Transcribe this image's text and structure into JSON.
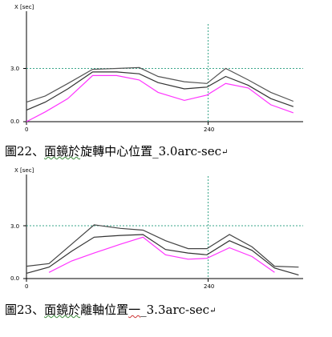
{
  "charts": [
    {
      "ylabel": "X [sec]",
      "ytick": "3.0",
      "ytick0": "0.0",
      "xtick0": "0",
      "xtick": "240",
      "caption": {
        "prefix": "圖22、",
        "underlined": "面鏡於",
        "rest": "旋轉中心位置_3.0arc-sec",
        "mark": "↵"
      }
    },
    {
      "ylabel": "X [sec]",
      "ytick": "3.0",
      "ytick0": "0.0",
      "xtick0": "0",
      "xtick": "240",
      "caption": {
        "prefix": "圖23、",
        "underlined": "面鏡於",
        "rest_a": "離軸位置",
        "underlined_red": "一",
        "rest_b": "_3.3arc-sec",
        "mark": "↵"
      }
    }
  ],
  "chart_data": [
    {
      "type": "line",
      "xlabel": "",
      "ylabel": "X [sec]",
      "xlim": [
        0,
        368
      ],
      "ylim": [
        0,
        4.5
      ],
      "grid": false,
      "reference_lines": {
        "x": 240,
        "y": 3.0
      },
      "series": [
        {
          "x": [
            0,
            25,
            55,
            88,
            120,
            150,
            175,
            210,
            240,
            265,
            295,
            325,
            355
          ],
          "values": [
            1.1,
            1.45,
            2.15,
            2.95,
            3.0,
            3.05,
            2.55,
            2.25,
            2.15,
            3.0,
            2.35,
            1.65,
            1.15
          ],
          "color": "#555555"
        },
        {
          "x": [
            0,
            25,
            55,
            88,
            120,
            150,
            175,
            210,
            240,
            265,
            295,
            325,
            355
          ],
          "values": [
            0.65,
            1.1,
            1.85,
            2.8,
            2.8,
            2.7,
            2.2,
            1.85,
            1.95,
            2.55,
            2.05,
            1.3,
            0.85
          ],
          "color": "#333333"
        },
        {
          "x": [
            0,
            25,
            55,
            88,
            120,
            150,
            175,
            210,
            240,
            265,
            295,
            325,
            355
          ],
          "values": [
            0.0,
            0.55,
            1.3,
            2.6,
            2.6,
            2.35,
            1.65,
            1.2,
            1.5,
            2.15,
            1.9,
            0.95,
            0.5
          ],
          "color": "#ff33ff"
        }
      ]
    },
    {
      "type": "line",
      "xlabel": "",
      "ylabel": "X [sec]",
      "xlim": [
        0,
        368
      ],
      "ylim": [
        0,
        4.5
      ],
      "grid": false,
      "reference_lines": {
        "x": 240,
        "y": 3.0
      },
      "series": [
        {
          "x": [
            0,
            30,
            60,
            90,
            125,
            155,
            185,
            215,
            240,
            270,
            300,
            330,
            362
          ],
          "values": [
            0.7,
            0.85,
            1.95,
            3.05,
            2.85,
            2.75,
            2.15,
            1.7,
            1.7,
            2.5,
            1.8,
            0.7,
            0.65
          ],
          "color": "#444444"
        },
        {
          "x": [
            0,
            30,
            60,
            90,
            125,
            155,
            185,
            215,
            240,
            270,
            300,
            330,
            362
          ],
          "values": [
            0.3,
            0.65,
            1.55,
            2.35,
            2.45,
            2.5,
            1.65,
            1.45,
            1.35,
            2.15,
            1.6,
            0.6,
            0.2
          ],
          "color": "#333333"
        },
        {
          "x": [
            30,
            60,
            90,
            125,
            155,
            185,
            215,
            240,
            270,
            300,
            330
          ],
          "values": [
            0.35,
            1.0,
            1.45,
            1.95,
            2.35,
            1.35,
            1.1,
            1.15,
            1.75,
            1.25,
            0.35
          ],
          "color": "#ff33ff"
        }
      ]
    }
  ]
}
